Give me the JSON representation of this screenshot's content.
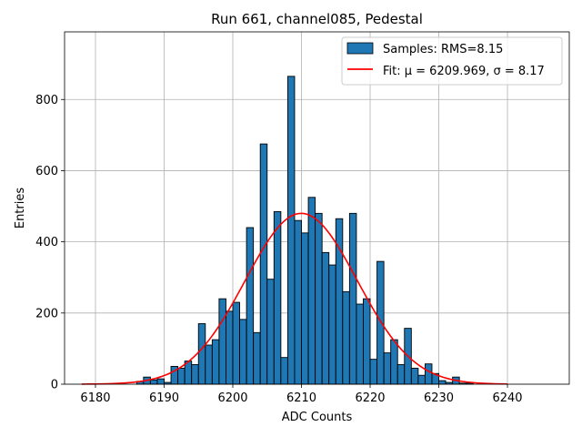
{
  "chart_data": {
    "type": "bar",
    "title": "Run 661, channel085, Pedestal",
    "xlabel": "ADC Counts",
    "ylabel": "Entries",
    "xlim": [
      6175.5,
      6249
    ],
    "ylim": [
      0,
      990
    ],
    "xticks": [
      6180,
      6190,
      6200,
      6210,
      6220,
      6230,
      6240
    ],
    "yticks": [
      0,
      200,
      400,
      600,
      800
    ],
    "grid": true,
    "bin_width": 1,
    "bar_color": "#1f77b4",
    "fit_color": "#ff0000",
    "histogram": {
      "name": "Samples: RMS=8.15",
      "bins": [
        6186,
        6187,
        6188,
        6189,
        6190,
        6191,
        6192,
        6193,
        6194,
        6195,
        6196,
        6197,
        6198,
        6199,
        6200,
        6201,
        6202,
        6203,
        6204,
        6205,
        6206,
        6207,
        6208,
        6209,
        6210,
        6211,
        6212,
        6213,
        6214,
        6215,
        6216,
        6217,
        6218,
        6219,
        6220,
        6221,
        6222,
        6223,
        6224,
        6225,
        6226,
        6227,
        6228,
        6229,
        6230,
        6231,
        6232,
        6233,
        6234
      ],
      "counts": [
        8,
        20,
        12,
        15,
        5,
        50,
        45,
        65,
        55,
        170,
        110,
        125,
        240,
        205,
        230,
        182,
        440,
        145,
        675,
        295,
        485,
        75,
        865,
        460,
        425,
        525,
        480,
        370,
        335,
        465,
        260,
        480,
        225,
        240,
        70,
        345,
        88,
        125,
        55,
        157,
        45,
        25,
        57,
        30,
        10,
        5,
        20,
        3,
        3
      ]
    },
    "fit": {
      "name": "Fit: μ = 6209.969, σ = 8.17",
      "mu": 6209.969,
      "sigma": 8.17,
      "amplitude": 480,
      "x_range": [
        6178,
        6240
      ]
    },
    "legend": {
      "position": "top-right",
      "entries": [
        "Samples: RMS=8.15",
        "Fit: μ = 6209.969, σ = 8.17"
      ]
    }
  }
}
